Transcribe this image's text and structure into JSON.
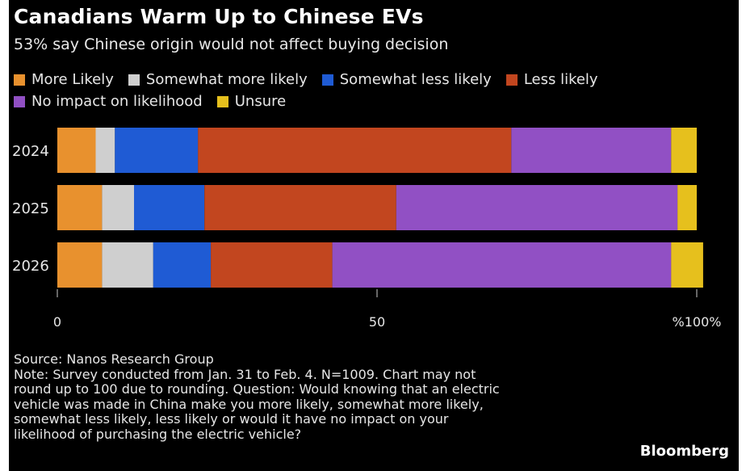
{
  "header": {
    "title": "Canadians Warm Up to Chinese EVs",
    "subtitle": "53% say Chinese origin would not affect buying decision"
  },
  "legend": [
    {
      "label": "More Likely",
      "color": "#e8912e"
    },
    {
      "label": "Somewhat more likely",
      "color": "#cfcfcf"
    },
    {
      "label": "Somewhat less likely",
      "color": "#1f5bd4"
    },
    {
      "label": "Less likely",
      "color": "#c2461f"
    },
    {
      "label": "No impact on likelihood",
      "color": "#9150c4"
    },
    {
      "label": "Unsure",
      "color": "#e6c01d"
    }
  ],
  "chart_data": {
    "type": "bar",
    "orientation": "horizontal",
    "stacked": true,
    "title": "Canadians Warm Up to Chinese EVs",
    "subtitle": "53% say Chinese origin would not affect buying decision",
    "categories": [
      "2024",
      "2025",
      "2026"
    ],
    "series": [
      {
        "name": "More Likely",
        "color": "#e8912e",
        "values": [
          6,
          7,
          7
        ]
      },
      {
        "name": "Somewhat more likely",
        "color": "#cfcfcf",
        "values": [
          3,
          5,
          8
        ]
      },
      {
        "name": "Somewhat less likely",
        "color": "#1f5bd4",
        "values": [
          13,
          11,
          9
        ]
      },
      {
        "name": "Less likely",
        "color": "#c2461f",
        "values": [
          49,
          30,
          19
        ]
      },
      {
        "name": "No impact on likelihood",
        "color": "#9150c4",
        "values": [
          25,
          44,
          53
        ]
      },
      {
        "name": "Unsure",
        "color": "#e6c01d",
        "values": [
          4,
          3,
          5
        ]
      }
    ],
    "xlim": [
      0,
      100
    ],
    "xticks": [
      0,
      50,
      100
    ],
    "xtick_labels": [
      "0",
      "50",
      "%100%"
    ],
    "xlabel": "",
    "ylabel": "",
    "grid": false,
    "legend_position": "top"
  },
  "footer": {
    "source": "Source: Nanos Research Group",
    "note_lines": [
      "Note: Survey conducted from Jan. 31 to Feb. 4. N=1009. Chart may not",
      "round up to 100 due to rounding. Question: Would knowing that an electric",
      "vehicle was made in China make you more likely, somewhat more likely,",
      "somewhat less likely, less likely or would it have no impact on your",
      "likelihood of purchasing the electric vehicle?"
    ],
    "brand": "Bloomberg"
  }
}
